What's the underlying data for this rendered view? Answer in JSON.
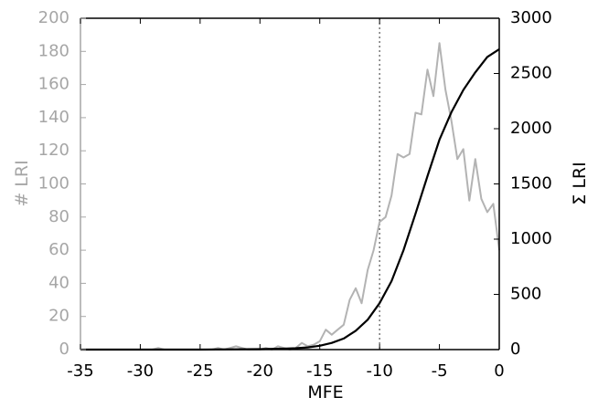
{
  "chart_data": {
    "type": "line",
    "xlabel": "MFE",
    "ylabel_left": "# LRI",
    "ylabel_right": "Σ LRI",
    "xlim": [
      -35,
      0
    ],
    "ylim_left": [
      0,
      200
    ],
    "ylim_right": [
      0,
      3000
    ],
    "x_ticks": [
      -35,
      -30,
      -25,
      -20,
      -15,
      -10,
      -5,
      0
    ],
    "y_left_ticks": [
      0,
      20,
      40,
      60,
      80,
      100,
      120,
      140,
      160,
      180,
      200
    ],
    "y_right_ticks": [
      0,
      500,
      1000,
      1500,
      2000,
      2500,
      3000
    ],
    "reference_line_x": -10,
    "colors": {
      "histogram": "#b3b3b3",
      "cumulative": "#000000",
      "left_axis": "#a6a6a6",
      "right_axis": "#000000",
      "reference_line": "#555555"
    },
    "series": [
      {
        "axis": "left",
        "x": [
          -35,
          -34,
          -33,
          -32,
          -31,
          -30,
          -29,
          -28.5,
          -28,
          -27,
          -26,
          -25,
          -24,
          -23.5,
          -23,
          -22.5,
          -22,
          -21.5,
          -21,
          -20,
          -19.5,
          -19,
          -18.5,
          -18,
          -17.5,
          -17,
          -16.5,
          -16,
          -15.5,
          -15,
          -14.5,
          -14,
          -13.5,
          -13,
          -12.5,
          -12,
          -11.5,
          -11,
          -10.5,
          -10,
          -9.5,
          -9,
          -8.5,
          -8,
          -7.5,
          -7,
          -6.5,
          -6,
          -5.5,
          -5,
          -4.5,
          -4,
          -3.5,
          -3,
          -2.5,
          -2,
          -1.5,
          -1,
          -0.5,
          0
        ],
        "values": [
          0,
          0,
          0,
          0,
          0,
          0,
          0,
          1,
          0,
          0,
          0,
          0,
          0,
          1,
          0,
          1,
          2,
          1,
          0,
          0,
          1,
          0,
          2,
          1,
          0,
          1,
          4,
          2,
          3,
          5,
          12,
          9,
          12,
          15,
          30,
          37,
          28,
          48,
          60,
          77,
          80,
          93,
          118,
          116,
          118,
          143,
          142,
          169,
          153,
          185,
          157,
          138,
          115,
          121,
          90,
          115,
          91,
          83,
          88,
          60
        ]
      },
      {
        "axis": "right",
        "x": [
          -35,
          -30,
          -25,
          -20,
          -18,
          -17,
          -16,
          -15,
          -14,
          -13,
          -12,
          -11,
          -10,
          -9,
          -8,
          -7,
          -6,
          -5,
          -4,
          -3,
          -2,
          -1,
          0
        ],
        "values": [
          0,
          0,
          0,
          4,
          8,
          12,
          20,
          35,
          60,
          100,
          170,
          270,
          420,
          620,
          900,
          1230,
          1570,
          1900,
          2150,
          2350,
          2510,
          2650,
          2720
        ]
      }
    ]
  }
}
